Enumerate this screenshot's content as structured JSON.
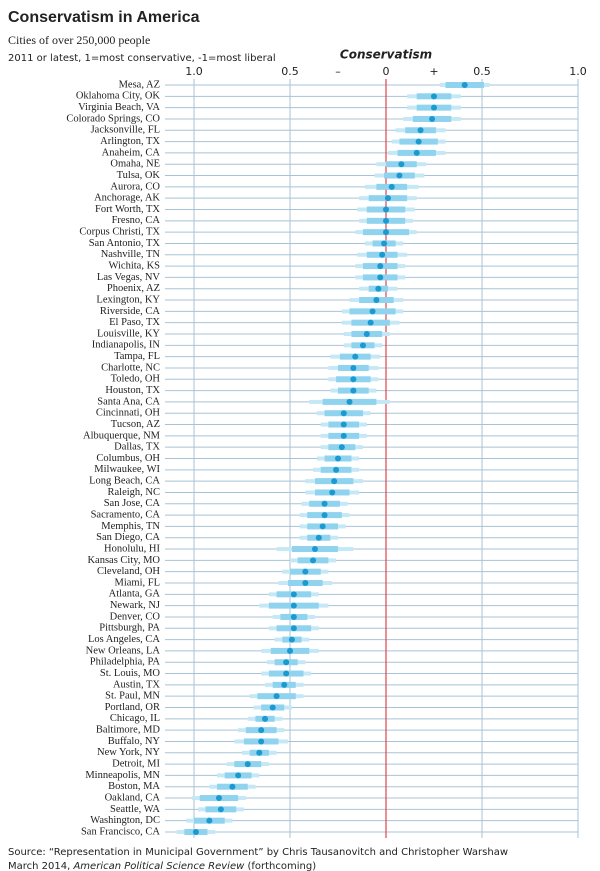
{
  "chart_data": {
    "type": "dot-interval",
    "title": "Conservatism in America",
    "subtitle": "Cities of over 250,000 people",
    "note": "2011 or latest, 1=most conservative, -1=most liberal",
    "x_label": "Conservatism",
    "annotations": [
      {
        "text": "–",
        "x": -0.25
      },
      {
        "text": "+",
        "x": 0.25
      }
    ],
    "xlim": [
      -1,
      1
    ],
    "xticks": [
      {
        "value": -1,
        "label": "1.0"
      },
      {
        "value": -0.5,
        "label": "0.5"
      },
      0,
      0.5,
      {
        "value": 1,
        "label": "1.0"
      }
    ],
    "categories": [
      "Mesa, AZ",
      "Oklahoma City, OK",
      "Virginia Beach, VA",
      "Colorado Springs, CO",
      "Jacksonville, FL",
      "Arlington, TX",
      "Anaheim, CA",
      "Omaha, NE",
      "Tulsa, OK",
      "Aurora, CO",
      "Anchorage, AK",
      "Fort Worth, TX",
      "Fresno, CA",
      "Corpus Christi, TX",
      "San Antonio, TX",
      "Nashville, TN",
      "Wichita, KS",
      "Las Vegas, NV",
      "Phoenix, AZ",
      "Lexington, KY",
      "Riverside, CA",
      "El Paso, TX",
      "Louisville, KY",
      "Indianapolis, IN",
      "Tampa, FL",
      "Charlotte, NC",
      "Toledo, OH",
      "Houston, TX",
      "Santa Ana, CA",
      "Cincinnati, OH",
      "Tucson, AZ",
      "Albuquerque, NM",
      "Dallas, TX",
      "Columbus, OH",
      "Milwaukee, WI",
      "Long Beach, CA",
      "Raleigh, NC",
      "San Jose, CA",
      "Sacramento, CA",
      "Memphis, TN",
      "San Diego, CA",
      "Honolulu, HI",
      "Kansas City, MO",
      "Cleveland, OH",
      "Miami, FL",
      "Atlanta, GA",
      "Newark, NJ",
      "Denver, CO",
      "Pittsburgh, PA",
      "Los Angeles, CA",
      "New Orleans, LA",
      "Philadelphia, PA",
      "St. Louis, MO",
      "Austin, TX",
      "St. Paul, MN",
      "Portland, OR",
      "Chicago, IL",
      "Baltimore, MD",
      "Buffalo, NY",
      "New York, NY",
      "Detroit, MI",
      "Minneapolis, MN",
      "Boston, MA",
      "Oakland, CA",
      "Seattle, WA",
      "Washington, DC",
      "San Francisco, CA"
    ],
    "values": [
      0.41,
      0.25,
      0.25,
      0.24,
      0.18,
      0.17,
      0.16,
      0.08,
      0.07,
      0.03,
      0.01,
      0.0,
      0.0,
      0.0,
      -0.01,
      -0.02,
      -0.03,
      -0.03,
      -0.04,
      -0.05,
      -0.07,
      -0.08,
      -0.1,
      -0.12,
      -0.16,
      -0.17,
      -0.17,
      -0.17,
      -0.19,
      -0.22,
      -0.22,
      -0.22,
      -0.23,
      -0.25,
      -0.26,
      -0.27,
      -0.28,
      -0.32,
      -0.32,
      -0.33,
      -0.35,
      -0.37,
      -0.38,
      -0.42,
      -0.42,
      -0.48,
      -0.48,
      -0.48,
      -0.48,
      -0.49,
      -0.5,
      -0.52,
      -0.52,
      -0.53,
      -0.57,
      -0.59,
      -0.63,
      -0.65,
      -0.65,
      -0.66,
      -0.72,
      -0.77,
      -0.8,
      -0.87,
      -0.86,
      -0.92,
      -0.99
    ],
    "errors_inner": [
      0.1,
      0.09,
      0.09,
      0.1,
      0.08,
      0.1,
      0.1,
      0.08,
      0.08,
      0.08,
      0.1,
      0.1,
      0.1,
      0.12,
      0.06,
      0.08,
      0.09,
      0.09,
      0.05,
      0.09,
      0.12,
      0.1,
      0.08,
      0.06,
      0.08,
      0.08,
      0.09,
      0.08,
      0.14,
      0.1,
      0.08,
      0.08,
      0.07,
      0.07,
      0.08,
      0.1,
      0.09,
      0.08,
      0.09,
      0.08,
      0.06,
      0.12,
      0.08,
      0.08,
      0.09,
      0.09,
      0.13,
      0.07,
      0.09,
      0.05,
      0.1,
      0.06,
      0.09,
      0.06,
      0.1,
      0.06,
      0.05,
      0.08,
      0.09,
      0.05,
      0.07,
      0.07,
      0.08,
      0.1,
      0.08,
      0.08,
      0.06
    ],
    "errors_outer": [
      0.13,
      0.14,
      0.14,
      0.15,
      0.13,
      0.14,
      0.15,
      0.13,
      0.13,
      0.14,
      0.15,
      0.15,
      0.14,
      0.16,
      0.1,
      0.13,
      0.13,
      0.13,
      0.1,
      0.14,
      0.16,
      0.15,
      0.12,
      0.1,
      0.13,
      0.13,
      0.13,
      0.12,
      0.21,
      0.14,
      0.12,
      0.12,
      0.11,
      0.11,
      0.12,
      0.15,
      0.14,
      0.12,
      0.13,
      0.12,
      0.1,
      0.2,
      0.12,
      0.12,
      0.14,
      0.13,
      0.18,
      0.11,
      0.13,
      0.09,
      0.15,
      0.1,
      0.13,
      0.1,
      0.14,
      0.1,
      0.09,
      0.12,
      0.14,
      0.09,
      0.11,
      0.11,
      0.12,
      0.14,
      0.12,
      0.12,
      0.1
    ],
    "color": "#1a9ad0",
    "inner_color": "#8fd3ef",
    "outer_color": "#c5e8f6",
    "zero_line_color": "#e0454a",
    "grid": true,
    "source_line1": "Source: “Representation in Municipal Government” by Chris Tausanovitch and Christopher Warshaw",
    "source_line2": [
      "March 2014, ",
      "American Political Science Review",
      " (forthcoming)"
    ]
  }
}
